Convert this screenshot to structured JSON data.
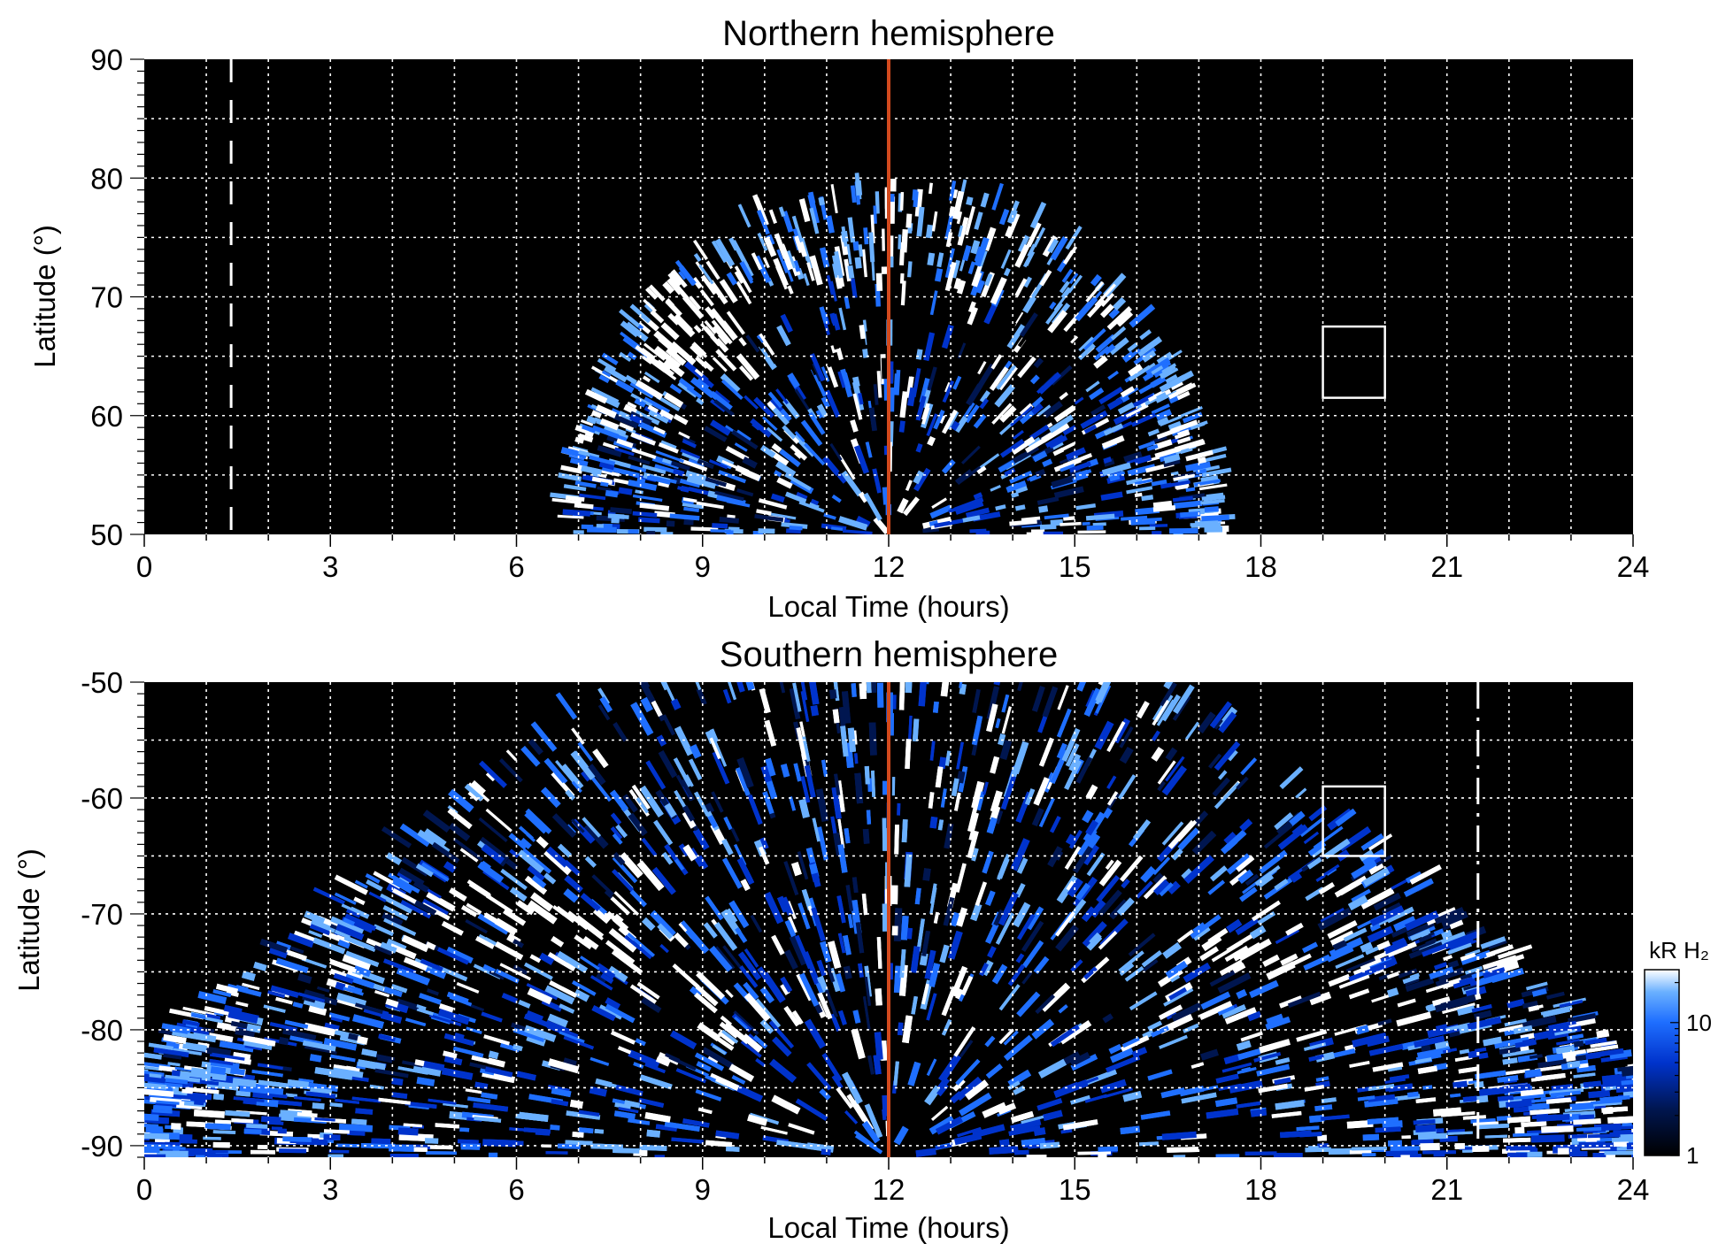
{
  "chart_data": [
    {
      "type": "heatmap",
      "title": "Northern hemisphere",
      "xlabel": "Local Time (hours)",
      "ylabel": "Latitude (°)",
      "xlim": [
        0,
        24
      ],
      "ylim": [
        50,
        90
      ],
      "xticks": [
        "0",
        "3",
        "6",
        "9",
        "12",
        "15",
        "18",
        "21",
        "24"
      ],
      "yticks": [
        "50",
        "60",
        "70",
        "80",
        "90"
      ],
      "grid": true,
      "background": "#000000",
      "reference_line": {
        "x": 12,
        "color": "#d24a1e"
      },
      "dashed_line": {
        "x": 1.4
      },
      "box": {
        "x": [
          19,
          20
        ],
        "y": [
          61.5,
          67.5
        ]
      },
      "emission_region": {
        "x_range": [
          7,
          17.3
        ],
        "max_lat_at_noon": 79
      },
      "auroral_oval": {
        "lat_range": [
          63,
          69
        ],
        "bright_spot": {
          "x": [
            8.2,
            9.8
          ],
          "y": [
            63,
            71
          ]
        }
      }
    },
    {
      "type": "heatmap",
      "title": "Southern hemisphere",
      "xlabel": "Local Time (hours)",
      "ylabel": "Latitude (°)",
      "xlim": [
        0,
        24
      ],
      "ylim": [
        -91,
        -50
      ],
      "xticks": [
        "0",
        "3",
        "6",
        "9",
        "12",
        "15",
        "18",
        "21",
        "24"
      ],
      "yticks": [
        "-50",
        "-60",
        "-70",
        "-80",
        "-90"
      ],
      "grid": true,
      "background": "#000000",
      "reference_line": {
        "x": 12,
        "color": "#d24a1e"
      },
      "dashed_line": {
        "x": 21.5
      },
      "box": {
        "x": [
          19,
          20
        ],
        "y": [
          -65,
          -59
        ]
      },
      "bright_arcs": [
        {
          "x": [
            4.9,
            8
          ],
          "y": [
            -69,
            -72
          ]
        },
        {
          "x": [
            16.5,
            20.5
          ],
          "y": [
            -73,
            -79
          ]
        }
      ],
      "colorbar": {
        "label": "kR H₂",
        "scale": "log",
        "range": [
          1,
          25
        ],
        "ticks": [
          "1",
          "10"
        ],
        "colors": [
          "#000000",
          "#001650",
          "#0033cc",
          "#1f6fff",
          "#6ab0ff",
          "#ffffff"
        ]
      }
    }
  ]
}
